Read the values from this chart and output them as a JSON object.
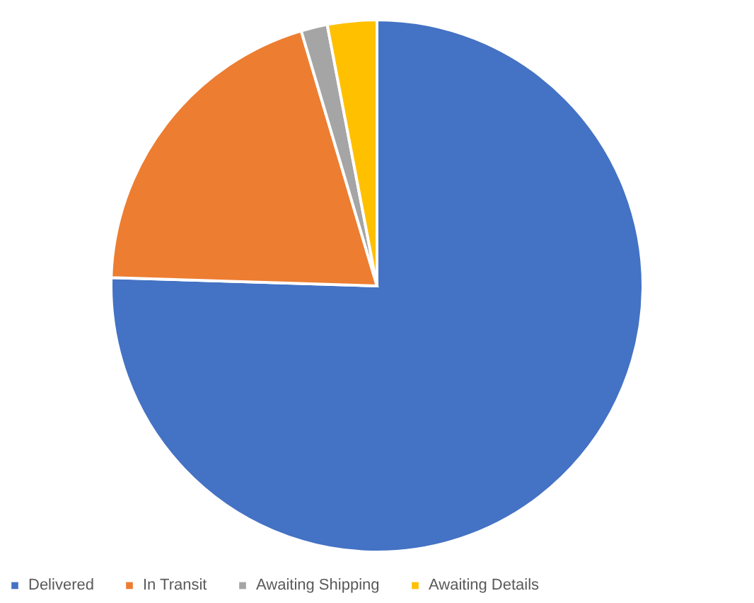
{
  "chart_data": {
    "type": "pie",
    "categories": [
      "Delivered",
      "In Transit",
      "Awaiting Shipping",
      "Awaiting Details"
    ],
    "values": [
      75.5,
      19.9,
      1.6,
      3.0
    ],
    "colors": [
      "#4472c4",
      "#ed7d31",
      "#a5a5a5",
      "#ffc000"
    ],
    "legend": "bottom"
  }
}
